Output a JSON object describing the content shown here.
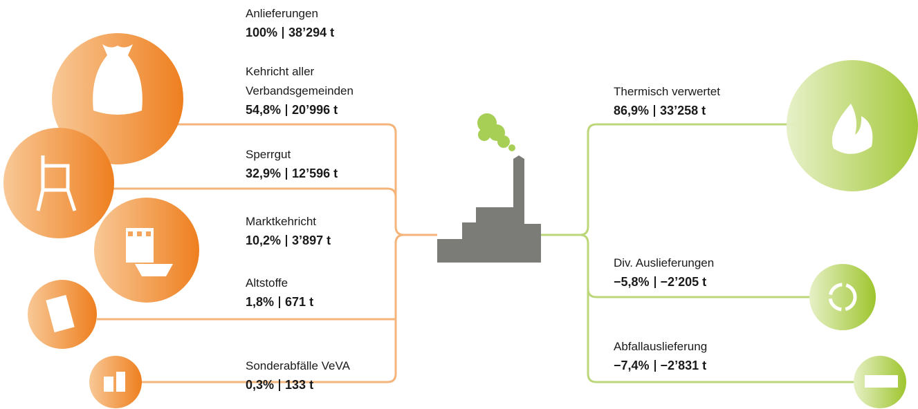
{
  "total": {
    "label": "Anlieferungen",
    "share": "100%",
    "amount": "38’294 t"
  },
  "inputs": [
    {
      "label": "Kehricht aller\nVerbandsgemeinden",
      "share": "54,8%",
      "amount": "20’996 t"
    },
    {
      "label": "Sperrgut",
      "share": "32,9%",
      "amount": "12’596 t"
    },
    {
      "label": "Marktkehricht",
      "share": "10,2%",
      "amount": "3’897 t"
    },
    {
      "label": "Altstoffe",
      "share": "1,8%",
      "amount": "671 t"
    },
    {
      "label": "Sonderabfälle VeVA",
      "share": "0,3%",
      "amount": "133 t"
    }
  ],
  "outputs": [
    {
      "label": "Thermisch verwertet",
      "share": "86,9%",
      "amount": "33’258 t"
    },
    {
      "label": "Div. Auslieferungen",
      "share": "−5,8%",
      "amount": "−2’205 t"
    },
    {
      "label": "Abfallauslieferung",
      "share": "−7,4%",
      "amount": "−2’831 t"
    }
  ]
}
